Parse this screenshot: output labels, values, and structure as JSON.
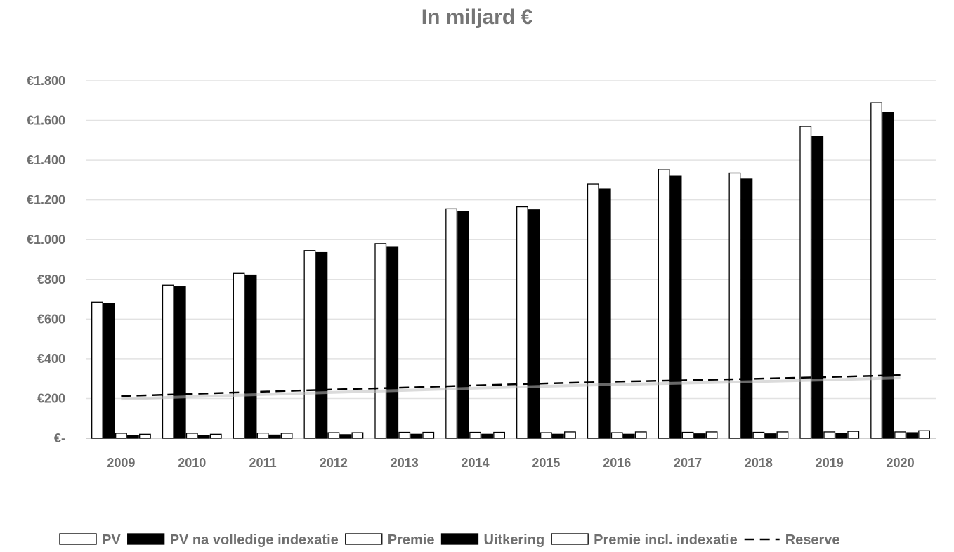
{
  "chart_data": {
    "type": "bar",
    "title": "In miljard €",
    "categories": [
      "2009",
      "2010",
      "2011",
      "2012",
      "2013",
      "2014",
      "2015",
      "2016",
      "2017",
      "2018",
      "2019",
      "2020"
    ],
    "y_tick_labels": [
      "€-",
      "€200",
      "€400",
      "€600",
      "€800",
      "€1.000",
      "€1.200",
      "€1.400",
      "€1.600",
      "€1.800"
    ],
    "ylim": [
      0,
      1800
    ],
    "grid": true,
    "legend_position": "bottom",
    "series": [
      {
        "name": "PV",
        "kind": "bar",
        "fill": "#ffffff",
        "values": [
          685,
          770,
          830,
          945,
          980,
          1155,
          1165,
          1280,
          1355,
          1335,
          1570,
          1690
        ]
      },
      {
        "name": "PV na volledige indexatie",
        "kind": "bar",
        "fill": "#000000",
        "values": [
          680,
          765,
          822,
          935,
          965,
          1140,
          1150,
          1255,
          1322,
          1305,
          1520,
          1640
        ]
      },
      {
        "name": "Premie",
        "kind": "bar",
        "fill": "#ffffff",
        "values": [
          25,
          25,
          26,
          28,
          30,
          30,
          28,
          28,
          30,
          30,
          32,
          32
        ]
      },
      {
        "name": "Uitkering",
        "kind": "bar",
        "fill": "#000000",
        "values": [
          15,
          15,
          16,
          18,
          20,
          20,
          20,
          20,
          22,
          22,
          25,
          28
        ]
      },
      {
        "name": "Premie incl. indexatie",
        "kind": "bar",
        "fill": "#ffffff",
        "values": [
          20,
          20,
          25,
          28,
          30,
          30,
          32,
          32,
          32,
          32,
          35,
          38
        ]
      },
      {
        "name": "Reserve",
        "kind": "line",
        "style": "dashed",
        "color": "#000000",
        "values": [
          212,
          223,
          234,
          245,
          255,
          266,
          276,
          285,
          292,
          300,
          308,
          318
        ]
      }
    ]
  }
}
